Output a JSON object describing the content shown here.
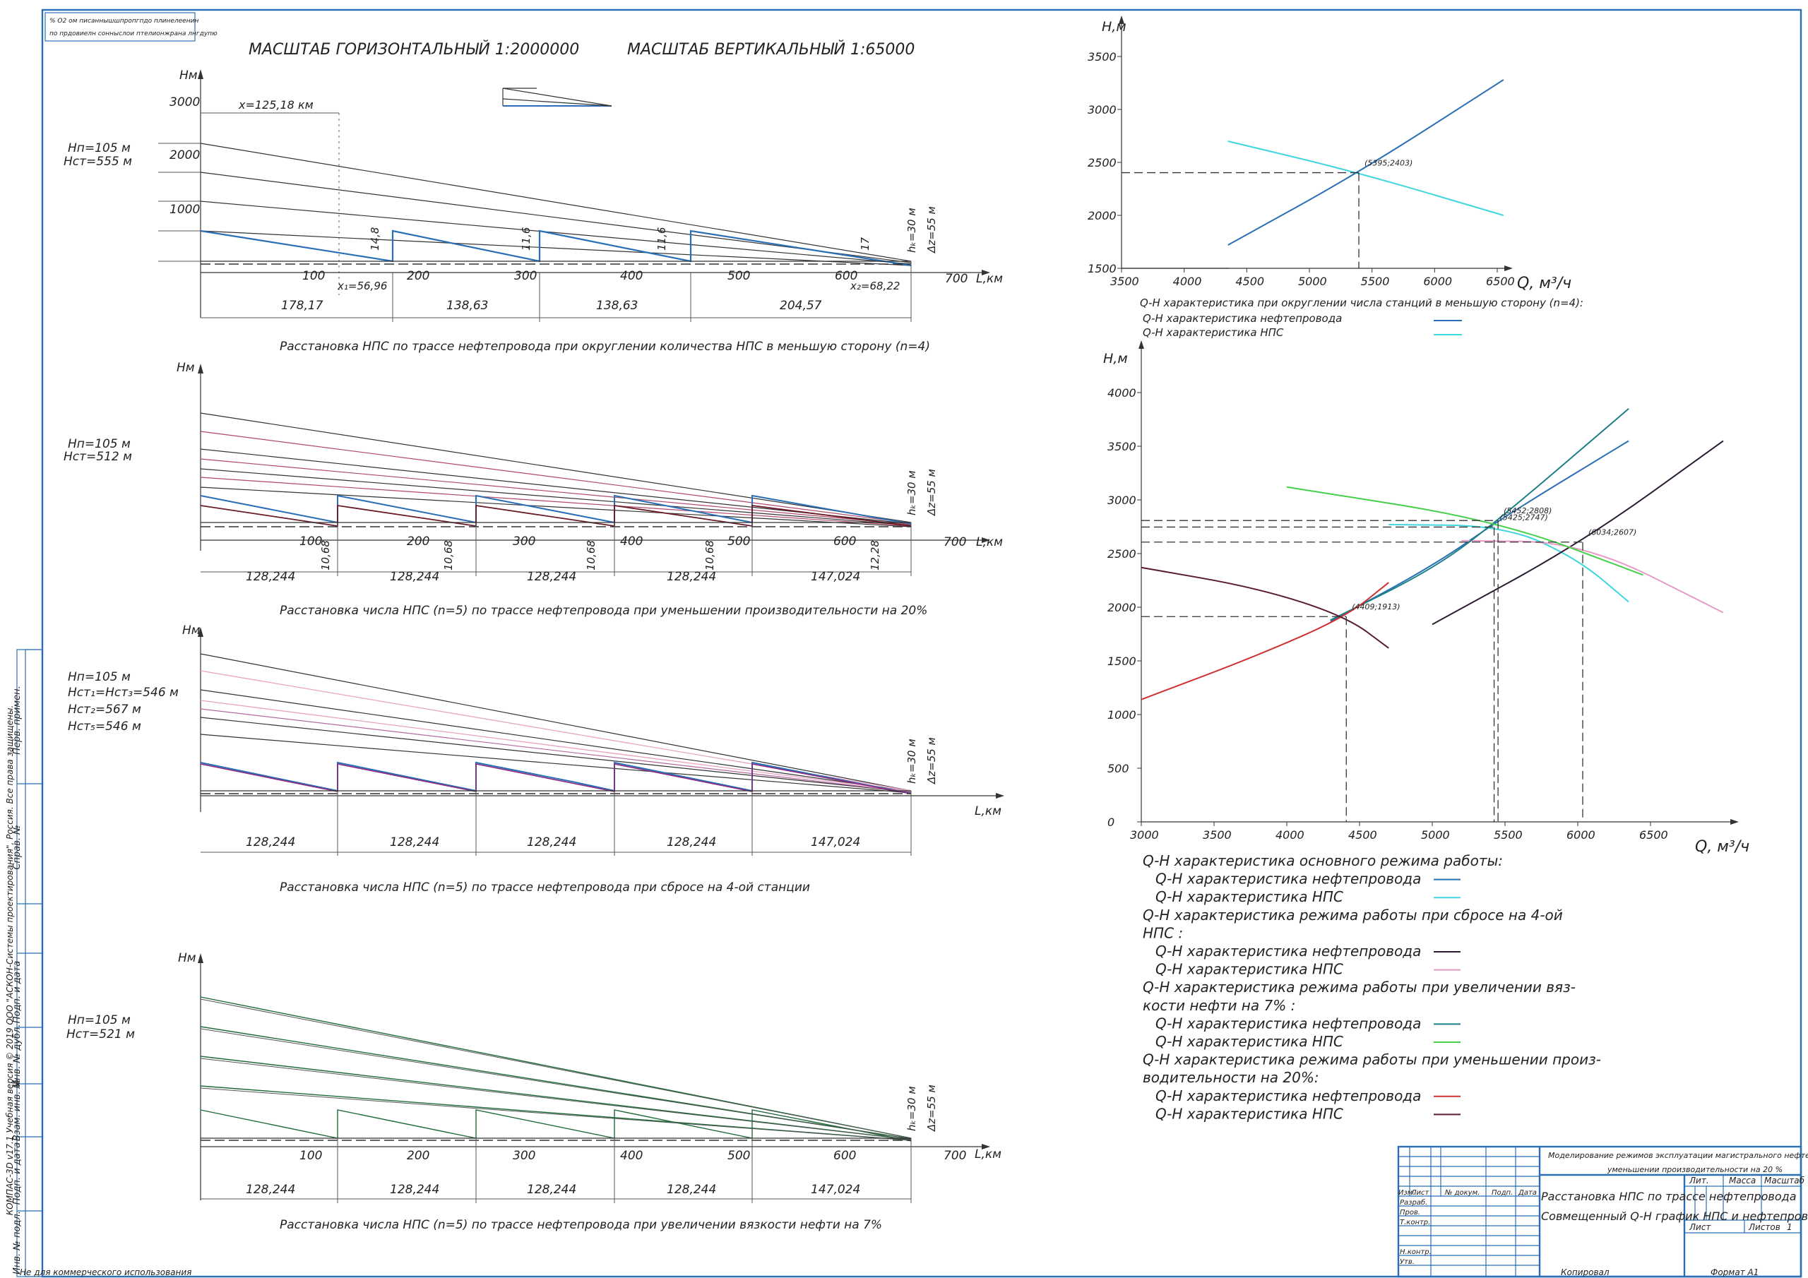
{
  "scale_titles": {
    "horizontal": "МАСШТАБ ГОРИЗОНТАЛЬНЫЙ  1:2000000",
    "vertical": "МАСШТАБ ВЕРТИКАЛЬНЫЙ    1:65000"
  },
  "stamp_note": [
    "% О2 ом писаннышшпропгпдо плинелеенин",
    "по прдовиелн сонныслои птелионжрана лнгдупю"
  ],
  "profile1": {
    "caption": "Расстановка НПС по трассе нефтепровода при округлении количества НПС в меньшую сторону (n=4)",
    "params": [
      "Hп=105 м",
      "Hст=555 м"
    ],
    "y_axis": "Hм",
    "x_axis": "L,км",
    "y_ticks": [
      "3000",
      "2000",
      "1000"
    ],
    "x_ticks": [
      "100",
      "200",
      "300",
      "400",
      "500",
      "600",
      "700"
    ],
    "segments": [
      "178,17",
      "138,63",
      "138,63",
      "204,57"
    ],
    "x_top": "x=125,18 км",
    "x1": "x₁=56,96",
    "x2": "x₂=68,22",
    "drops": [
      "14,8",
      "11,6",
      "11,6",
      "17"
    ],
    "hk": "hₖ=30 м",
    "dz": "Δz=55 м"
  },
  "profile2": {
    "caption": "Расстановка числа НПС (n=5) по трассе нефтепровода при уменьшении производительности на 20%",
    "params": [
      "Hп=105 м",
      "Hст=512 м"
    ],
    "y_axis": "Hм",
    "x_axis": "L,км",
    "x_ticks": [
      "100",
      "200",
      "300",
      "400",
      "500",
      "600",
      "700"
    ],
    "segments": [
      "128,244",
      "128,244",
      "128,244",
      "128,244",
      "147,024"
    ],
    "drops": [
      "10,68",
      "10,68",
      "10,68",
      "10,68",
      "12,28"
    ],
    "hk": "hₖ=30 м",
    "dz": "Δz=55 м"
  },
  "profile3": {
    "caption": "Расстановка числа НПС (n=5) по трассе нефтепровода при сбросе на 4-ой станции",
    "params": [
      "Hп=105 м",
      "Hст₁=Hст₃=546 м",
      "Hст₂=567 м",
      "Hст₅=546 м"
    ],
    "y_axis": "Hм",
    "x_axis": "L,км",
    "segments": [
      "128,244",
      "128,244",
      "128,244",
      "128,244",
      "147,024"
    ],
    "hk": "hₖ=30 м",
    "dz": "Δz=55 м"
  },
  "profile4": {
    "caption": "Расстановка числа НПС (n=5) по трассе нефтепровода при увеличении  вязкости нефти на 7%",
    "params": [
      "Hп=105 м",
      "Hст=521 м"
    ],
    "y_axis": "Hм",
    "x_axis": "L,км",
    "x_ticks": [
      "100",
      "200",
      "300",
      "400",
      "500",
      "600",
      "700"
    ],
    "segments": [
      "128,244",
      "128,244",
      "128,244",
      "128,244",
      "147,024"
    ],
    "hk": "hₖ=30 м",
    "dz": "Δz=55 м"
  },
  "chart_data": [
    {
      "type": "line",
      "ylabel": "Н,м",
      "xlabel": "Q, м³/ч",
      "xlim": [
        3500,
        6500
      ],
      "ylim": [
        1500,
        3500
      ],
      "x_ticks": [
        "3500",
        "4000",
        "4500",
        "5000",
        "5500",
        "6000",
        "6500"
      ],
      "y_ticks": [
        "1500",
        "2000",
        "2500",
        "3000",
        "3500"
      ],
      "point_label": "(5395;2403)",
      "point": [
        5395,
        2403
      ],
      "series": [
        {
          "color": "#2a6fb5",
          "x": [
            4350,
            5395,
            6550
          ],
          "y": [
            1720,
            2403,
            3280
          ]
        },
        {
          "color": "#3fd6de",
          "x": [
            4350,
            5395,
            6550
          ],
          "y": [
            2700,
            2403,
            2000
          ]
        }
      ],
      "legend_title": "Q-H характеристика при округлении числа станций в меньшую сторону (n=4):",
      "legend": [
        {
          "label": "Q-H характеристика нефтепровода",
          "color": "#2a6fb5"
        },
        {
          "label": "Q-H характеристика НПС",
          "color": "#3fd6de"
        }
      ]
    },
    {
      "type": "line",
      "ylabel": "Н,м",
      "xlabel": "Q, м³/ч",
      "xlim": [
        3000,
        7000
      ],
      "ylim": [
        0,
        4000
      ],
      "x_ticks": [
        "3000",
        "3500",
        "4000",
        "4500",
        "5000",
        "5500",
        "6000",
        "6500"
      ],
      "y_ticks": [
        "0",
        "500",
        "1000",
        "1500",
        "2000",
        "2500",
        "3000",
        "3500",
        "4000"
      ],
      "points": [
        {
          "label": "(5452;2808)",
          "x": 5452,
          "y": 2808
        },
        {
          "label": "(5425;2747)",
          "x": 5425,
          "y": 2747
        },
        {
          "label": "(6034;2607)",
          "x": 6034,
          "y": 2607
        },
        {
          "label": "(4409;1913)",
          "x": 4409,
          "y": 1913
        }
      ],
      "series": [
        {
          "color": "#2a6fb5",
          "x": [
            4300,
            5000,
            5500,
            6350
          ],
          "y": [
            1870,
            2380,
            2850,
            3550
          ]
        },
        {
          "color": "#3fd6de",
          "x": [
            4700,
            5500,
            6000,
            6350
          ],
          "y": [
            2770,
            2760,
            2450,
            2050
          ]
        },
        {
          "color": "#2b1a33",
          "x": [
            5000,
            6034,
            7000
          ],
          "y": [
            1840,
            2607,
            3550
          ]
        },
        {
          "color": "#e89ac4",
          "x": [
            5200,
            6034,
            7000
          ],
          "y": [
            2620,
            2607,
            1950
          ]
        },
        {
          "color": "#1d7f86",
          "x": [
            4300,
            5000,
            5452,
            6350
          ],
          "y": [
            1880,
            2350,
            2808,
            3850
          ]
        },
        {
          "color": "#45d04a",
          "x": [
            4000,
            5452,
            6450
          ],
          "y": [
            3120,
            2808,
            2300
          ]
        },
        {
          "color": "#d03030",
          "x": [
            3000,
            3800,
            4409,
            4700
          ],
          "y": [
            1140,
            1550,
            1913,
            2230
          ]
        },
        {
          "color": "#5a1c2a",
          "x": [
            3000,
            3800,
            4409,
            4700
          ],
          "y": [
            2370,
            2180,
            1913,
            1620
          ]
        }
      ],
      "legend": [
        {
          "label": "Q-H характеристика основного режима работы:",
          "color": ""
        },
        {
          "label": "Q-H характеристика нефтепровода",
          "color": "#2a6fb5"
        },
        {
          "label": "Q-H  характеристика НПС",
          "color": "#3fd6de"
        },
        {
          "label": "Q-H характеристика режима работы при сбросе на 4-ой",
          "color": ""
        },
        {
          "label": "НПС :",
          "color": ""
        },
        {
          "label": "Q-H характеристика  нефтепровода",
          "color": "#2b1a33"
        },
        {
          "label": "Q-H характеристика  НПС",
          "color": "#e89ac4"
        },
        {
          "label": "Q-H характеристика режима работы при увеличении вяз-",
          "color": ""
        },
        {
          "label": "кости нефти на 7% :",
          "color": ""
        },
        {
          "label": "Q-H характеристика  нефтепровода",
          "color": "#1d7f86"
        },
        {
          "label": "Q-H характеристика НПС",
          "color": "#45d04a"
        },
        {
          "label": "Q-H характеристика режима работы при уменьшении произ-",
          "color": ""
        },
        {
          "label": "водительности на 20%:",
          "color": ""
        },
        {
          "label": "Q-H характеристика нефтепровода",
          "color": "#d03030"
        },
        {
          "label": "Q-H характеристика НПС",
          "color": "#5a1c2a"
        }
      ]
    }
  ],
  "title_block": {
    "project": [
      "Моделирование режимов эксплуатации магистрального нефтепровода при",
      "уменьшении производительности на 20 %"
    ],
    "sheet_title": [
      "Расстановка НПС по трассе нефтепровода",
      "Совмещенный Q-H график НПС и нефтепровода"
    ],
    "cols": [
      "Изм.",
      "Лист",
      "№ докум.",
      "Подп.",
      "Дата"
    ],
    "rows": [
      "Разраб.",
      "Пров.",
      "Т.контр.",
      "Н.контр.",
      "Утв."
    ],
    "meta": [
      "Лит.",
      "Масса",
      "Масштаб"
    ],
    "sheet": "Лист",
    "sheets": "Листов",
    "sheets_val": "1",
    "copied": "Копировал",
    "format": "Формат     A1"
  },
  "side_strip": [
    "Перв. примен.",
    "Справ. №",
    "Подп. и дата",
    "Инв. № дубл.",
    "Взам. инв. №",
    "Подп. и дата",
    "Инв. № подл."
  ],
  "copyright": "КОМПАС-3D v17.1 Учебная версия © 2019 ООО \"АСКОН-Системы проектирования\", Россия. Все права защищены.",
  "footer_left": "Не для коммерческого использования"
}
